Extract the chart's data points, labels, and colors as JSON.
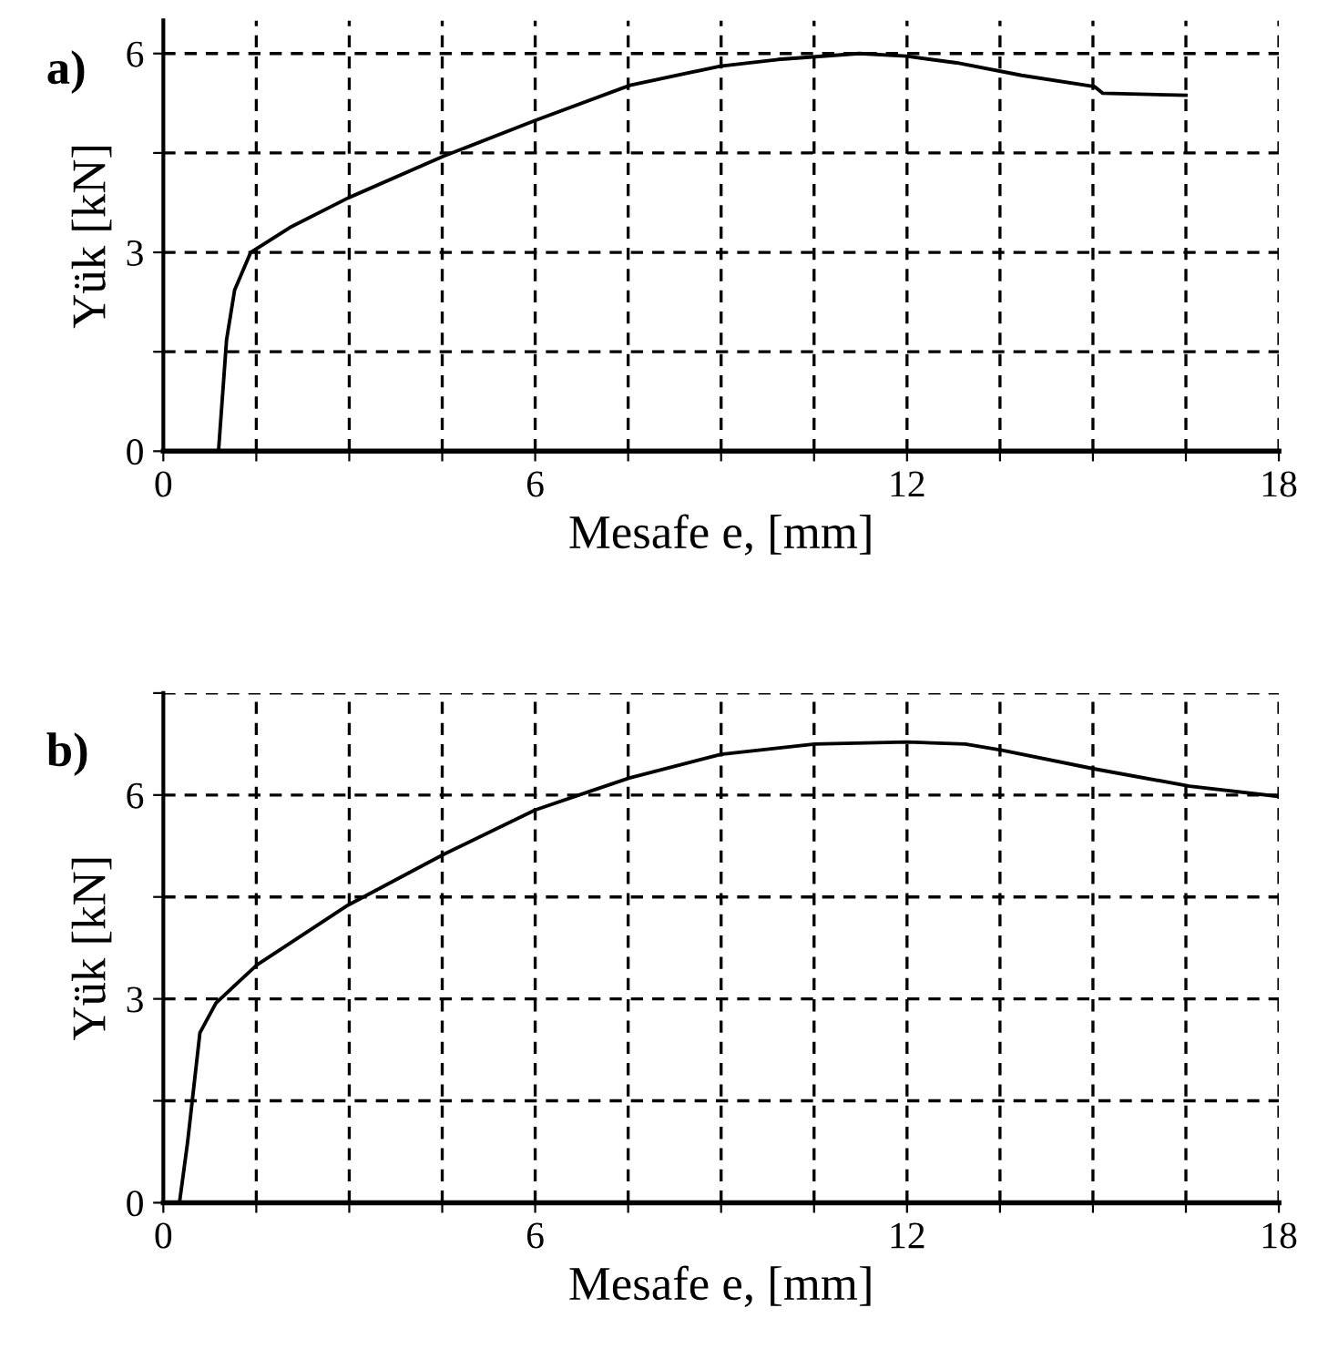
{
  "chart_data": [
    {
      "type": "line",
      "xlabel": "Mesafe e, [mm]",
      "ylabel": "Yük [kN]",
      "annotations": [
        "a)"
      ],
      "grid": true,
      "line_style": "solid",
      "marker": "none",
      "xlim": [
        0,
        18
      ],
      "ylim": [
        0,
        6.5
      ],
      "xticks": [
        0,
        {
          "value": 1.5,
          "label": null
        },
        {
          "value": 3,
          "label": null
        },
        {
          "value": 4.5,
          "label": null
        },
        6,
        {
          "value": 7.5,
          "label": null
        },
        {
          "value": 9,
          "label": null
        },
        {
          "value": 10.5,
          "label": null
        },
        12,
        {
          "value": 13.5,
          "label": null
        },
        {
          "value": 15,
          "label": null
        },
        {
          "value": 16.5,
          "label": null
        },
        18
      ],
      "yticks": [
        0,
        {
          "value": 1.5,
          "label": null
        },
        3,
        {
          "value": 4.5,
          "label": null
        },
        6
      ],
      "series": [
        {
          "color": "#000000",
          "x": [
            0.89,
            1.02,
            1.15,
            1.41,
            2.07,
            2.98,
            4.52,
            6.0,
            7.53,
            8.99,
            9.92,
            11.23,
            11.99,
            12.8,
            13.85,
            15.03,
            15.16,
            16.5
          ],
          "values": [
            0,
            1.68,
            2.43,
            3.0,
            3.39,
            3.82,
            4.45,
            4.99,
            5.52,
            5.81,
            5.91,
            6.0,
            5.96,
            5.86,
            5.67,
            5.5,
            5.4,
            5.37
          ]
        }
      ]
    },
    {
      "type": "line",
      "xlabel": "Mesafe e, [mm]",
      "ylabel": "Yük [kN]",
      "annotations": [
        "b)"
      ],
      "grid": true,
      "line_style": "solid",
      "marker": "none",
      "xlim": [
        0,
        18
      ],
      "ylim": [
        0,
        7.5
      ],
      "xticks": [
        0,
        {
          "value": 1.5,
          "label": null
        },
        {
          "value": 3,
          "label": null
        },
        {
          "value": 4.5,
          "label": null
        },
        6,
        {
          "value": 7.5,
          "label": null
        },
        {
          "value": 9,
          "label": null
        },
        {
          "value": 10.5,
          "label": null
        },
        12,
        {
          "value": 13.5,
          "label": null
        },
        {
          "value": 15,
          "label": null
        },
        {
          "value": 16.5,
          "label": null
        },
        18
      ],
      "yticks": [
        0,
        {
          "value": 1.5,
          "label": null
        },
        3,
        {
          "value": 4.5,
          "label": null
        },
        6,
        {
          "value": 7.5,
          "label": null
        }
      ],
      "series": [
        {
          "color": "#000000",
          "x": [
            0.26,
            0.39,
            0.59,
            0.85,
            1.51,
            2.98,
            4.53,
            6.0,
            6.9,
            7.52,
            9.0,
            10.51,
            12.0,
            12.94,
            13.53,
            15.05,
            16.56,
            18.0
          ],
          "values": [
            0,
            0.88,
            2.5,
            2.94,
            3.5,
            4.38,
            5.13,
            5.78,
            6.06,
            6.25,
            6.6,
            6.75,
            6.78,
            6.75,
            6.66,
            6.38,
            6.13,
            5.98
          ]
        }
      ]
    }
  ]
}
